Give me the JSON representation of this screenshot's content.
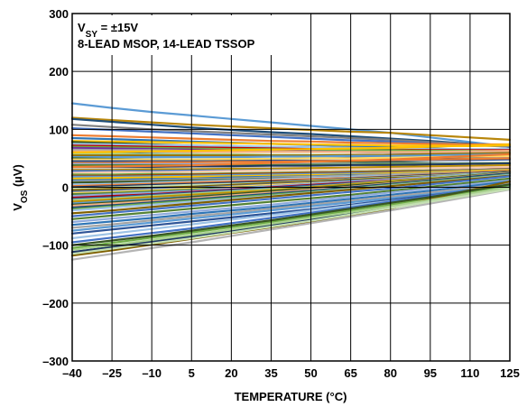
{
  "chart_data": {
    "type": "line",
    "title": "",
    "xlabel": "TEMPERATURE (°C)",
    "ylabel_main": "V",
    "ylabel_sub": "OS",
    "ylabel_unit": " (µV)",
    "annotation_line1_main": "V",
    "annotation_line1_sub": "SY",
    "annotation_line1_rest": " = ±15V",
    "annotation_line2": "8-LEAD MSOP, 14-LEAD TSSOP",
    "xlim": [
      -40,
      125
    ],
    "ylim": [
      -300,
      300
    ],
    "grid": true,
    "legend": "none",
    "x": [
      -40,
      -25,
      -10,
      5,
      20,
      35,
      50,
      65,
      80,
      95,
      110,
      125
    ],
    "xticks": [
      -40,
      -25,
      -10,
      5,
      20,
      35,
      50,
      65,
      80,
      95,
      110,
      125
    ],
    "yticks": [
      -300,
      -200,
      -100,
      0,
      100,
      200,
      300
    ],
    "xtick_labels": [
      "–40",
      "–25",
      "–10",
      "5",
      "20",
      "35",
      "50",
      "65",
      "80",
      "95",
      "110",
      "125"
    ],
    "ytick_labels": [
      "–300",
      "–200",
      "–100",
      "0",
      "100",
      "200",
      "300"
    ],
    "series": [
      {
        "color": "#5b9bd5",
        "values": [
          145,
          137,
          130,
          124,
          118,
          112,
          106,
          100,
          94,
          86,
          78,
          70
        ]
      },
      {
        "color": "#b8860b",
        "values": [
          120,
          116,
          112,
          108,
          105,
          102,
          99,
          96,
          94,
          90,
          86,
          82
        ]
      },
      {
        "color": "#1f4e79",
        "values": [
          118,
          113,
          108,
          103,
          99,
          95,
          92,
          88,
          84,
          80,
          75,
          70
        ]
      },
      {
        "color": "#808080",
        "values": [
          108,
          104,
          100,
          97,
          94,
          91,
          88,
          85,
          82,
          78,
          74,
          70
        ]
      },
      {
        "color": "#4472c4",
        "values": [
          102,
          99,
          96,
          93,
          90,
          87,
          84,
          81,
          79,
          76,
          73,
          70
        ]
      },
      {
        "color": "#ed7d31",
        "values": [
          90,
          88,
          86,
          84,
          82,
          80,
          79,
          77,
          76,
          75,
          74,
          74
        ]
      },
      {
        "color": "#2e75b6",
        "values": [
          85,
          83,
          81,
          79,
          77,
          75,
          73,
          71,
          69,
          67,
          65,
          63
        ]
      },
      {
        "color": "#ffc000",
        "values": [
          80,
          79,
          78,
          77,
          76,
          75,
          74,
          73,
          72,
          72,
          71,
          72
        ]
      },
      {
        "color": "#375623",
        "values": [
          78,
          76,
          74,
          72,
          71,
          69,
          67,
          66,
          64,
          62,
          60,
          58
        ]
      },
      {
        "color": "#9dc3e6",
        "values": [
          75,
          74,
          73,
          72,
          71,
          70,
          69,
          68,
          67,
          66,
          66,
          66
        ]
      },
      {
        "color": "#c00000",
        "values": [
          72,
          71,
          70,
          69,
          68,
          67,
          66,
          65,
          65,
          64,
          64,
          64
        ]
      },
      {
        "color": "#70ad47",
        "values": [
          70,
          69,
          68,
          67,
          66,
          66,
          65,
          64,
          64,
          63,
          63,
          62
        ]
      },
      {
        "color": "#7030a0",
        "values": [
          68,
          67,
          66,
          65,
          64,
          63,
          62,
          61,
          60,
          59,
          58,
          57
        ]
      },
      {
        "color": "#a5a5a5",
        "values": [
          65,
          64,
          64,
          63,
          62,
          62,
          61,
          61,
          60,
          60,
          60,
          60
        ]
      },
      {
        "color": "#f4b183",
        "values": [
          62,
          62,
          62,
          61,
          61,
          61,
          61,
          61,
          61,
          61,
          62,
          63
        ]
      },
      {
        "color": "#264478",
        "values": [
          60,
          59,
          58,
          57,
          56,
          55,
          54,
          53,
          52,
          51,
          50,
          50
        ]
      },
      {
        "color": "#a9d18e",
        "values": [
          58,
          58,
          57,
          57,
          57,
          56,
          56,
          56,
          56,
          55,
          55,
          55
        ]
      },
      {
        "color": "#997300",
        "values": [
          55,
          55,
          55,
          55,
          55,
          55,
          55,
          56,
          56,
          57,
          58,
          59
        ]
      },
      {
        "color": "#5b9bd5",
        "values": [
          52,
          52,
          52,
          52,
          52,
          53,
          53,
          54,
          54,
          55,
          56,
          57
        ]
      },
      {
        "color": "#43682b",
        "values": [
          50,
          49,
          48,
          47,
          46,
          45,
          44,
          44,
          43,
          42,
          41,
          40
        ]
      },
      {
        "color": "#ffd966",
        "values": [
          48,
          48,
          48,
          48,
          49,
          49,
          50,
          50,
          51,
          52,
          53,
          54
        ]
      },
      {
        "color": "#2f5597",
        "values": [
          45,
          45,
          45,
          45,
          45,
          46,
          46,
          46,
          46,
          47,
          47,
          48
        ]
      },
      {
        "color": "#ed7d31",
        "values": [
          42,
          42,
          43,
          43,
          44,
          44,
          45,
          46,
          47,
          48,
          49,
          50
        ]
      },
      {
        "color": "#8faadc",
        "values": [
          40,
          40,
          40,
          40,
          40,
          40,
          40,
          40,
          41,
          41,
          42,
          42
        ]
      },
      {
        "color": "#548235",
        "values": [
          38,
          38,
          38,
          38,
          38,
          38,
          39,
          39,
          40,
          40,
          41,
          42
        ]
      },
      {
        "color": "#1f3864",
        "values": [
          35,
          35,
          35,
          36,
          36,
          37,
          37,
          38,
          38,
          39,
          40,
          41
        ]
      },
      {
        "color": "#c9c9c9",
        "values": [
          32,
          32,
          32,
          33,
          33,
          34,
          34,
          35,
          35,
          36,
          37,
          38
        ]
      },
      {
        "color": "#bf9000",
        "values": [
          30,
          30,
          31,
          31,
          32,
          32,
          33,
          34,
          35,
          36,
          37,
          38
        ]
      },
      {
        "color": "#4472c4",
        "values": [
          28,
          28,
          28,
          29,
          29,
          30,
          30,
          31,
          32,
          33,
          34,
          35
        ]
      },
      {
        "color": "#f8cbad",
        "values": [
          25,
          26,
          26,
          27,
          28,
          29,
          30,
          31,
          32,
          33,
          34,
          35
        ]
      },
      {
        "color": "#70ad47",
        "values": [
          22,
          22,
          23,
          23,
          24,
          25,
          26,
          27,
          28,
          29,
          30,
          31
        ]
      },
      {
        "color": "#9e480e",
        "values": [
          20,
          20,
          21,
          22,
          23,
          24,
          25,
          26,
          27,
          28,
          30,
          32
        ]
      },
      {
        "color": "#5b9bd5",
        "values": [
          18,
          18,
          19,
          20,
          21,
          22,
          23,
          24,
          25,
          27,
          29,
          31
        ]
      },
      {
        "color": "#ffc000",
        "values": [
          15,
          16,
          17,
          18,
          19,
          20,
          21,
          22,
          24,
          26,
          28,
          30
        ]
      },
      {
        "color": "#2e75b6",
        "values": [
          12,
          13,
          14,
          15,
          17,
          18,
          19,
          21,
          22,
          24,
          26,
          28
        ]
      },
      {
        "color": "#a5a5a5",
        "values": [
          10,
          11,
          12,
          14,
          15,
          17,
          18,
          20,
          22,
          24,
          26,
          28
        ]
      },
      {
        "color": "#385723",
        "values": [
          8,
          9,
          10,
          12,
          13,
          15,
          16,
          18,
          20,
          22,
          24,
          26
        ]
      },
      {
        "color": "#9dc3e6",
        "values": [
          5,
          6,
          8,
          10,
          12,
          14,
          16,
          18,
          20,
          22,
          25,
          28
        ]
      },
      {
        "color": "#ed7d31",
        "values": [
          2,
          4,
          6,
          8,
          10,
          12,
          14,
          16,
          19,
          22,
          25,
          28
        ]
      },
      {
        "color": "#203864",
        "values": [
          0,
          2,
          4,
          6,
          8,
          10,
          12,
          15,
          18,
          21,
          24,
          27
        ]
      },
      {
        "color": "#c5e0b4",
        "values": [
          -2,
          0,
          2,
          4,
          6,
          8,
          11,
          14,
          17,
          20,
          23,
          26
        ]
      },
      {
        "color": "#7f6000",
        "values": [
          -5,
          -3,
          -1,
          1,
          4,
          7,
          10,
          13,
          16,
          19,
          22,
          25
        ]
      },
      {
        "color": "#4472c4",
        "values": [
          -8,
          -6,
          -3,
          -1,
          2,
          5,
          8,
          11,
          14,
          17,
          20,
          23
        ]
      },
      {
        "color": "#ffd966",
        "values": [
          -10,
          -8,
          -5,
          -2,
          1,
          4,
          7,
          10,
          14,
          18,
          22,
          26
        ]
      },
      {
        "color": "#548235",
        "values": [
          -12,
          -10,
          -7,
          -4,
          -1,
          2,
          6,
          10,
          14,
          18,
          22,
          26
        ]
      },
      {
        "color": "#8faadc",
        "values": [
          -15,
          -12,
          -9,
          -6,
          -2,
          2,
          6,
          10,
          14,
          18,
          22,
          26
        ]
      },
      {
        "color": "#c00000",
        "values": [
          -18,
          -15,
          -12,
          -8,
          -4,
          0,
          4,
          8,
          12,
          16,
          20,
          24
        ]
      },
      {
        "color": "#2f5597",
        "values": [
          -20,
          -17,
          -13,
          -9,
          -5,
          -1,
          3,
          7,
          11,
          16,
          21,
          26
        ]
      },
      {
        "color": "#a9d18e",
        "values": [
          -22,
          -19,
          -15,
          -11,
          -7,
          -3,
          1,
          6,
          11,
          16,
          21,
          26
        ]
      },
      {
        "color": "#bf9000",
        "values": [
          -25,
          -21,
          -17,
          -13,
          -9,
          -5,
          0,
          5,
          10,
          15,
          20,
          25
        ]
      },
      {
        "color": "#5b9bd5",
        "values": [
          -28,
          -24,
          -20,
          -16,
          -12,
          -7,
          -2,
          3,
          8,
          13,
          18,
          24
        ]
      },
      {
        "color": "#375623",
        "values": [
          -30,
          -26,
          -22,
          -17,
          -12,
          -7,
          -2,
          3,
          8,
          14,
          20,
          26
        ]
      },
      {
        "color": "#f4b183",
        "values": [
          -32,
          -28,
          -24,
          -19,
          -14,
          -9,
          -4,
          1,
          7,
          13,
          19,
          25
        ]
      },
      {
        "color": "#1f4e79",
        "values": [
          -35,
          -31,
          -26,
          -21,
          -16,
          -11,
          -6,
          0,
          6,
          12,
          18,
          24
        ]
      },
      {
        "color": "#70ad47",
        "values": [
          -38,
          -33,
          -28,
          -23,
          -18,
          -13,
          -8,
          -2,
          4,
          10,
          16,
          22
        ]
      },
      {
        "color": "#9dc3e6",
        "values": [
          -40,
          -35,
          -30,
          -25,
          -20,
          -15,
          -9,
          -3,
          3,
          9,
          15,
          21
        ]
      },
      {
        "color": "#806000",
        "values": [
          -45,
          -40,
          -34,
          -28,
          -22,
          -16,
          -10,
          -4,
          2,
          8,
          14,
          20
        ]
      },
      {
        "color": "#4472c4",
        "values": [
          -50,
          -44,
          -38,
          -32,
          -26,
          -20,
          -14,
          -8,
          -2,
          5,
          12,
          19
        ]
      },
      {
        "color": "#548235",
        "values": [
          -55,
          -49,
          -43,
          -37,
          -31,
          -25,
          -19,
          -13,
          -6,
          1,
          8,
          15
        ]
      },
      {
        "color": "#8faadc",
        "values": [
          -60,
          -54,
          -48,
          -42,
          -36,
          -30,
          -23,
          -16,
          -9,
          -2,
          5,
          12
        ]
      },
      {
        "color": "#2e75b6",
        "values": [
          -65,
          -59,
          -53,
          -46,
          -40,
          -34,
          -27,
          -20,
          -13,
          -6,
          2,
          10
        ]
      },
      {
        "color": "#a5a5a5",
        "values": [
          -70,
          -64,
          -57,
          -50,
          -44,
          -37,
          -30,
          -23,
          -16,
          -9,
          -1,
          7
        ]
      },
      {
        "color": "#5b9bd5",
        "values": [
          -75,
          -68,
          -61,
          -54,
          -47,
          -40,
          -33,
          -26,
          -19,
          -12,
          -4,
          4
        ]
      },
      {
        "color": "#2f5597",
        "values": [
          -80,
          -73,
          -66,
          -59,
          -52,
          -45,
          -38,
          -30,
          -22,
          -14,
          -6,
          2
        ]
      },
      {
        "color": "#9dc3e6",
        "values": [
          -88,
          -80,
          -72,
          -64,
          -56,
          -48,
          -40,
          -32,
          -24,
          -16,
          -8,
          0
        ]
      },
      {
        "color": "#4472c4",
        "values": [
          -95,
          -87,
          -79,
          -71,
          -62,
          -53,
          -44,
          -35,
          -25,
          -15,
          -5,
          5
        ]
      },
      {
        "color": "#70ad47",
        "values": [
          -105,
          -96,
          -87,
          -78,
          -69,
          -60,
          -50,
          -40,
          -30,
          -20,
          -8,
          4
        ]
      },
      {
        "color": "#1f3864",
        "values": [
          -112,
          -103,
          -94,
          -85,
          -75,
          -65,
          -55,
          -45,
          -34,
          -23,
          -12,
          -1
        ]
      },
      {
        "color": "#7f6000",
        "values": [
          -118,
          -109,
          -99,
          -89,
          -79,
          -69,
          -59,
          -49,
          -37,
          -20,
          -5,
          10
        ]
      },
      {
        "color": "#b4b4b4",
        "values": [
          -125,
          -115,
          -105,
          -95,
          -84,
          -73,
          -62,
          -51,
          -40,
          -28,
          -16,
          -4
        ]
      },
      {
        "color": "#a9d18e",
        "values": [
          -108,
          -100,
          -91,
          -82,
          -73,
          -63,
          -53,
          -43,
          -33,
          -22,
          -11,
          0
        ]
      },
      {
        "color": "#c5e0b4",
        "values": [
          -115,
          -106,
          -97,
          -88,
          -78,
          -68,
          -58,
          -47,
          -36,
          -25,
          -14,
          -3
        ]
      },
      {
        "color": "#385723",
        "values": [
          -100,
          -92,
          -84,
          -75,
          -66,
          -57,
          -47,
          -37,
          -27,
          -17,
          -6,
          5
        ]
      },
      {
        "color": "#ed7d31",
        "values": [
          35,
          36,
          37,
          38,
          40,
          42,
          44,
          46,
          48,
          51,
          54,
          57
        ]
      },
      {
        "color": "#ffc000",
        "values": [
          60,
          61,
          62,
          63,
          64,
          65,
          66,
          67,
          68,
          70,
          72,
          74
        ]
      }
    ]
  }
}
